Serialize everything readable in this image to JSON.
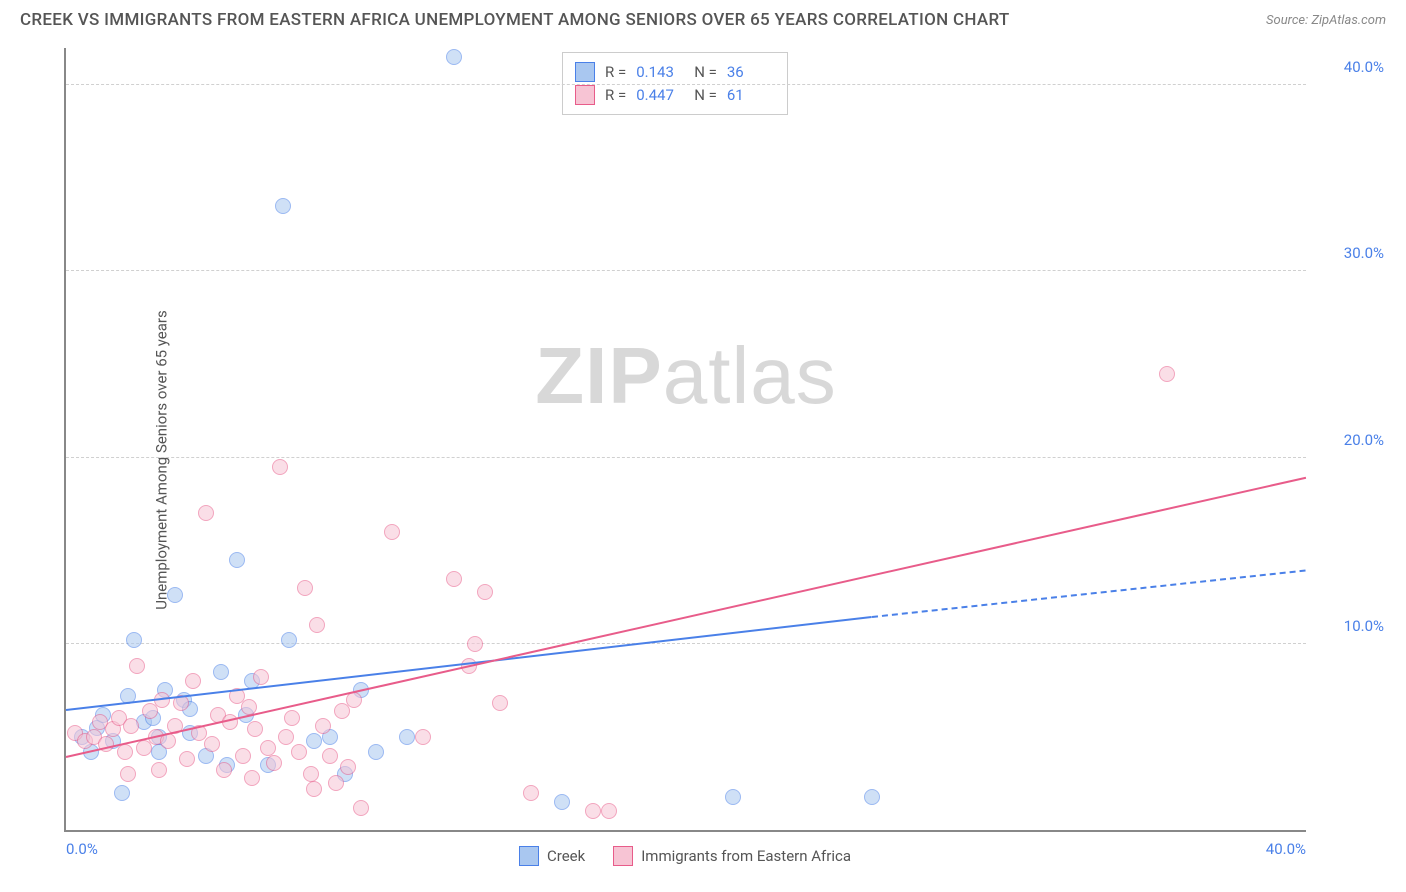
{
  "header": {
    "title": "CREEK VS IMMIGRANTS FROM EASTERN AFRICA UNEMPLOYMENT AMONG SENIORS OVER 65 YEARS CORRELATION CHART",
    "source_prefix": "Source: ",
    "source_link": "ZipAtlas.com"
  },
  "chart": {
    "type": "scatter",
    "ylabel": "Unemployment Among Seniors over 65 years",
    "xlim": [
      0,
      40
    ],
    "ylim": [
      0,
      42
    ],
    "xticks": [
      {
        "v": 0,
        "label": "0.0%"
      },
      {
        "v": 40,
        "label": "40.0%"
      }
    ],
    "yticks": [
      {
        "v": 10,
        "label": "10.0%"
      },
      {
        "v": 20,
        "label": "20.0%"
      },
      {
        "v": 30,
        "label": "30.0%"
      },
      {
        "v": 40,
        "label": "40.0%"
      }
    ],
    "grid_color": "#d0d0d0",
    "background_color": "#ffffff",
    "axis_color": "#888888",
    "tick_label_color": "#4a80e8",
    "label_fontsize": 15,
    "title_fontsize": 17,
    "marker_radius": 8,
    "marker_opacity": 0.55,
    "series": [
      {
        "name": "Creek",
        "color_fill": "#a9c7f0",
        "color_stroke": "#4a80e8",
        "R": "0.143",
        "N": "36",
        "trend": {
          "x1": 0,
          "y1": 6.5,
          "x2": 26,
          "y2": 11.5,
          "solid_until_x": 26,
          "dash_to_x": 40,
          "dash_to_y": 14
        },
        "points": [
          [
            0.5,
            5.0
          ],
          [
            0.8,
            4.2
          ],
          [
            1.0,
            5.5
          ],
          [
            1.2,
            6.2
          ],
          [
            1.5,
            4.8
          ],
          [
            1.8,
            2.0
          ],
          [
            2.0,
            7.2
          ],
          [
            2.2,
            10.2
          ],
          [
            2.5,
            5.8
          ],
          [
            2.8,
            6.0
          ],
          [
            3.0,
            5.0
          ],
          [
            3.2,
            7.5
          ],
          [
            3.5,
            12.6
          ],
          [
            3.8,
            7.0
          ],
          [
            4.0,
            5.2
          ],
          [
            4.5,
            4.0
          ],
          [
            5.0,
            8.5
          ],
          [
            5.2,
            3.5
          ],
          [
            5.5,
            14.5
          ],
          [
            6.0,
            8.0
          ],
          [
            6.5,
            3.5
          ],
          [
            7.0,
            33.5
          ],
          [
            7.2,
            10.2
          ],
          [
            8.0,
            4.8
          ],
          [
            8.5,
            5.0
          ],
          [
            9.0,
            3.0
          ],
          [
            9.5,
            7.5
          ],
          [
            10.0,
            4.2
          ],
          [
            11.0,
            5.0
          ],
          [
            12.5,
            41.5
          ],
          [
            16.0,
            1.5
          ],
          [
            21.5,
            1.8
          ],
          [
            26.0,
            1.8
          ],
          [
            4.0,
            6.5
          ],
          [
            5.8,
            6.2
          ],
          [
            3.0,
            4.2
          ]
        ]
      },
      {
        "name": "Immigrants from Eastern Africa",
        "color_fill": "#f7c4d4",
        "color_stroke": "#e85c8a",
        "R": "0.447",
        "N": "61",
        "trend": {
          "x1": 0,
          "y1": 4.0,
          "x2": 40,
          "y2": 19.0,
          "solid_until_x": 40
        },
        "points": [
          [
            0.3,
            5.2
          ],
          [
            0.6,
            4.8
          ],
          [
            0.9,
            5.0
          ],
          [
            1.1,
            5.8
          ],
          [
            1.3,
            4.6
          ],
          [
            1.5,
            5.4
          ],
          [
            1.7,
            6.0
          ],
          [
            1.9,
            4.2
          ],
          [
            2.1,
            5.6
          ],
          [
            2.3,
            8.8
          ],
          [
            2.5,
            4.4
          ],
          [
            2.7,
            6.4
          ],
          [
            2.9,
            5.0
          ],
          [
            3.1,
            7.0
          ],
          [
            3.3,
            4.8
          ],
          [
            3.5,
            5.6
          ],
          [
            3.7,
            6.8
          ],
          [
            3.9,
            3.8
          ],
          [
            4.1,
            8.0
          ],
          [
            4.3,
            5.2
          ],
          [
            4.5,
            17.0
          ],
          [
            4.7,
            4.6
          ],
          [
            4.9,
            6.2
          ],
          [
            5.1,
            3.2
          ],
          [
            5.3,
            5.8
          ],
          [
            5.5,
            7.2
          ],
          [
            5.7,
            4.0
          ],
          [
            5.9,
            6.6
          ],
          [
            6.1,
            5.4
          ],
          [
            6.3,
            8.2
          ],
          [
            6.5,
            4.4
          ],
          [
            6.7,
            3.6
          ],
          [
            6.9,
            19.5
          ],
          [
            7.1,
            5.0
          ],
          [
            7.3,
            6.0
          ],
          [
            7.5,
            4.2
          ],
          [
            7.7,
            13.0
          ],
          [
            7.9,
            3.0
          ],
          [
            8.1,
            11.0
          ],
          [
            8.3,
            5.6
          ],
          [
            8.5,
            4.0
          ],
          [
            8.7,
            2.5
          ],
          [
            8.9,
            6.4
          ],
          [
            9.1,
            3.4
          ],
          [
            9.3,
            7.0
          ],
          [
            9.5,
            1.2
          ],
          [
            10.5,
            16.0
          ],
          [
            11.5,
            5.0
          ],
          [
            12.5,
            13.5
          ],
          [
            13.0,
            8.8
          ],
          [
            13.2,
            10.0
          ],
          [
            13.5,
            12.8
          ],
          [
            14.0,
            6.8
          ],
          [
            15.0,
            2.0
          ],
          [
            17.0,
            1.0
          ],
          [
            17.5,
            1.0
          ],
          [
            35.5,
            24.5
          ],
          [
            2.0,
            3.0
          ],
          [
            3.0,
            3.2
          ],
          [
            6.0,
            2.8
          ],
          [
            8.0,
            2.2
          ]
        ]
      }
    ],
    "legend_top": {
      "r_label": "R =",
      "n_label": "N ="
    },
    "legend_bottom": [
      {
        "series": 0
      },
      {
        "series": 1
      }
    ],
    "watermark": {
      "zip": "ZIP",
      "atlas": "atlas"
    }
  }
}
